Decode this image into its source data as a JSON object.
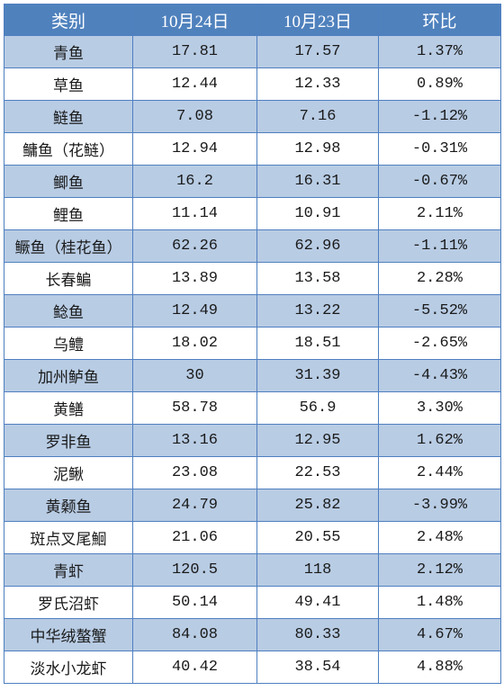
{
  "header": [
    "类别",
    "10月24日",
    "10月23日",
    "环比"
  ],
  "rows": [
    [
      "青鱼",
      "17.81",
      "17.57",
      "1.37%"
    ],
    [
      "草鱼",
      "12.44",
      "12.33",
      "0.89%"
    ],
    [
      "鲢鱼",
      "7.08",
      "7.16",
      "-1.12%"
    ],
    [
      "鳙鱼（花鲢）",
      "12.94",
      "12.98",
      "-0.31%"
    ],
    [
      "鲫鱼",
      "16.2",
      "16.31",
      "-0.67%"
    ],
    [
      "鲤鱼",
      "11.14",
      "10.91",
      "2.11%"
    ],
    [
      "鳜鱼（桂花鱼）",
      "62.26",
      "62.96",
      "-1.11%"
    ],
    [
      "长春鳊",
      "13.89",
      "13.58",
      "2.28%"
    ],
    [
      "鲶鱼",
      "12.49",
      "13.22",
      "-5.52%"
    ],
    [
      "乌鳢",
      "18.02",
      "18.51",
      "-2.65%"
    ],
    [
      "加州鲈鱼",
      "30",
      "31.39",
      "-4.43%"
    ],
    [
      "黄鳝",
      "58.78",
      "56.9",
      "3.30%"
    ],
    [
      "罗非鱼",
      "13.16",
      "12.95",
      "1.62%"
    ],
    [
      "泥鳅",
      "23.08",
      "22.53",
      "2.44%"
    ],
    [
      "黄颡鱼",
      "24.79",
      "25.82",
      "-3.99%"
    ],
    [
      "斑点叉尾鮰",
      "21.06",
      "20.55",
      "2.48%"
    ],
    [
      "青虾",
      "120.5",
      "118",
      "2.12%"
    ],
    [
      "罗氏沼虾",
      "50.14",
      "49.41",
      "1.48%"
    ],
    [
      "中华绒螯蟹",
      "84.08",
      "80.33",
      "4.67%"
    ],
    [
      "淡水小龙虾",
      "40.42",
      "38.54",
      "4.88%"
    ]
  ],
  "colors": {
    "header_bg": "#4f81bd",
    "band_bg": "#b8cce4",
    "border": "#4f7fc0"
  }
}
